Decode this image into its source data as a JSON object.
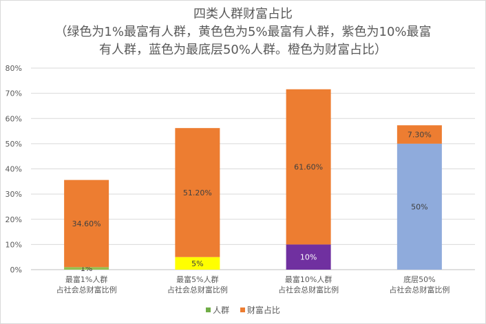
{
  "chart_data": {
    "type": "bar",
    "stacked": true,
    "title_lines": [
      "四类人群财富占比",
      "（绿色为1%最富有人群，黄色色为5%最富有人群，紫色为10%最富",
      "有人群，蓝色为最底层50%人群。橙色为财富占比）"
    ],
    "categories": [
      [
        "最富1%人群",
        "占社会总财富比例"
      ],
      [
        "最富5%人群",
        "占社会总财富比例"
      ],
      [
        "最富10%人群",
        "占社会总财富比例"
      ],
      [
        "底层50%",
        "占社会总财富比例"
      ]
    ],
    "ylim": [
      0,
      80
    ],
    "yticks": [
      "0%",
      "10%",
      "20%",
      "30%",
      "40%",
      "50%",
      "60%",
      "70%",
      "80%"
    ],
    "series": [
      {
        "name": "人群",
        "values": [
          1,
          5,
          10,
          50
        ],
        "labels": [
          "1%",
          "5%",
          "10%",
          "50%"
        ],
        "bar_colors": [
          "#92c050",
          "#ffff00",
          "#7030a0",
          "#8fabdc"
        ],
        "label_colors": [
          "#404040",
          "#404040",
          "#ffffff",
          "#404040"
        ]
      },
      {
        "name": "财富占比",
        "values": [
          34.6,
          51.2,
          61.6,
          7.3
        ],
        "labels": [
          "34.60%",
          "51.20%",
          "61.60%",
          "7.30%"
        ],
        "bar_colors": [
          "#ed7d31",
          "#ed7d31",
          "#ed7d31",
          "#ed7d31"
        ],
        "label_colors": [
          "#404040",
          "#404040",
          "#404040",
          "#404040"
        ]
      }
    ],
    "legend": {
      "position": "bottom"
    },
    "grid": true
  },
  "legend_colors": [
    "#70ad47",
    "#ed7d31"
  ]
}
